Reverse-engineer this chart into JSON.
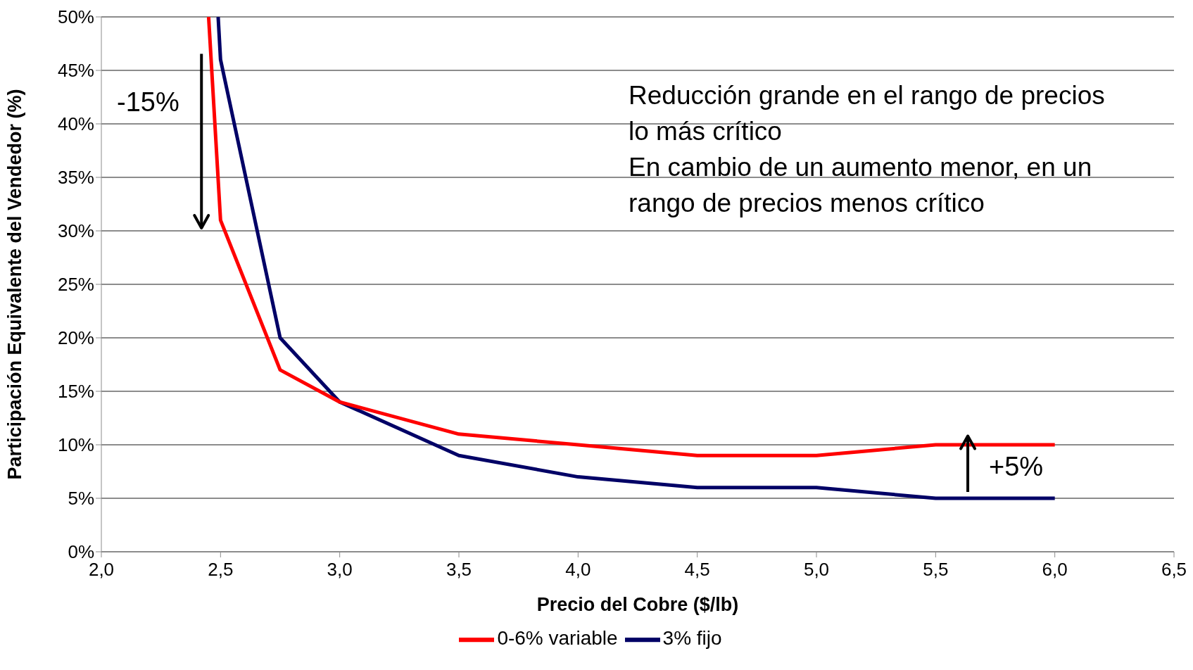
{
  "chart_data": {
    "type": "line",
    "xlabel": "Precio del Cobre ($/lb)",
    "ylabel": "Participación Equivalente del Vendedor (%)",
    "xlim": [
      2.0,
      6.5
    ],
    "xticks": [
      {
        "value": 2.0,
        "label": "2,0"
      },
      {
        "value": 2.5,
        "label": "2,5"
      },
      {
        "value": 3.0,
        "label": "3,0"
      },
      {
        "value": 3.5,
        "label": "3,5"
      },
      {
        "value": 4.0,
        "label": "4,0"
      },
      {
        "value": 4.5,
        "label": "4,5"
      },
      {
        "value": 5.0,
        "label": "5,0"
      },
      {
        "value": 5.5,
        "label": "5,5"
      },
      {
        "value": 6.0,
        "label": "6,0"
      },
      {
        "value": 6.5,
        "label": "6,5"
      }
    ],
    "ylim": [
      0,
      50
    ],
    "yticks": [
      {
        "value": 0,
        "label": "0%"
      },
      {
        "value": 5,
        "label": "5%"
      },
      {
        "value": 10,
        "label": "10%"
      },
      {
        "value": 15,
        "label": "15%"
      },
      {
        "value": 20,
        "label": "20%"
      },
      {
        "value": 25,
        "label": "25%"
      },
      {
        "value": 30,
        "label": "30%"
      },
      {
        "value": 35,
        "label": "35%"
      },
      {
        "value": 40,
        "label": "40%"
      },
      {
        "value": 45,
        "label": "45%"
      },
      {
        "value": 50,
        "label": "50%"
      }
    ],
    "grid": "y",
    "legend": "bottom",
    "marker": "none",
    "line_style": "solid",
    "series": [
      {
        "name": "3% fijo",
        "color": "#000066",
        "x": [
          2.49,
          2.5,
          2.75,
          3.0,
          3.5,
          4.0,
          4.5,
          5.0,
          5.5,
          6.0
        ],
        "values": [
          50,
          46,
          20,
          14,
          9,
          7,
          6,
          6,
          5,
          5
        ]
      },
      {
        "name": "0-6% variable",
        "color": "#ff0000",
        "x": [
          2.45,
          2.5,
          2.75,
          3.0,
          3.5,
          4.0,
          4.5,
          5.0,
          5.5,
          6.0
        ],
        "values": [
          50,
          31,
          17,
          14,
          11,
          10,
          9,
          9,
          10,
          10
        ]
      }
    ],
    "annotations": [
      "-15%",
      "+5%",
      "Reducción grande en el rango de precios lo más crítico",
      "En cambio de un aumento menor, en un rango de precios menos crítico"
    ]
  }
}
